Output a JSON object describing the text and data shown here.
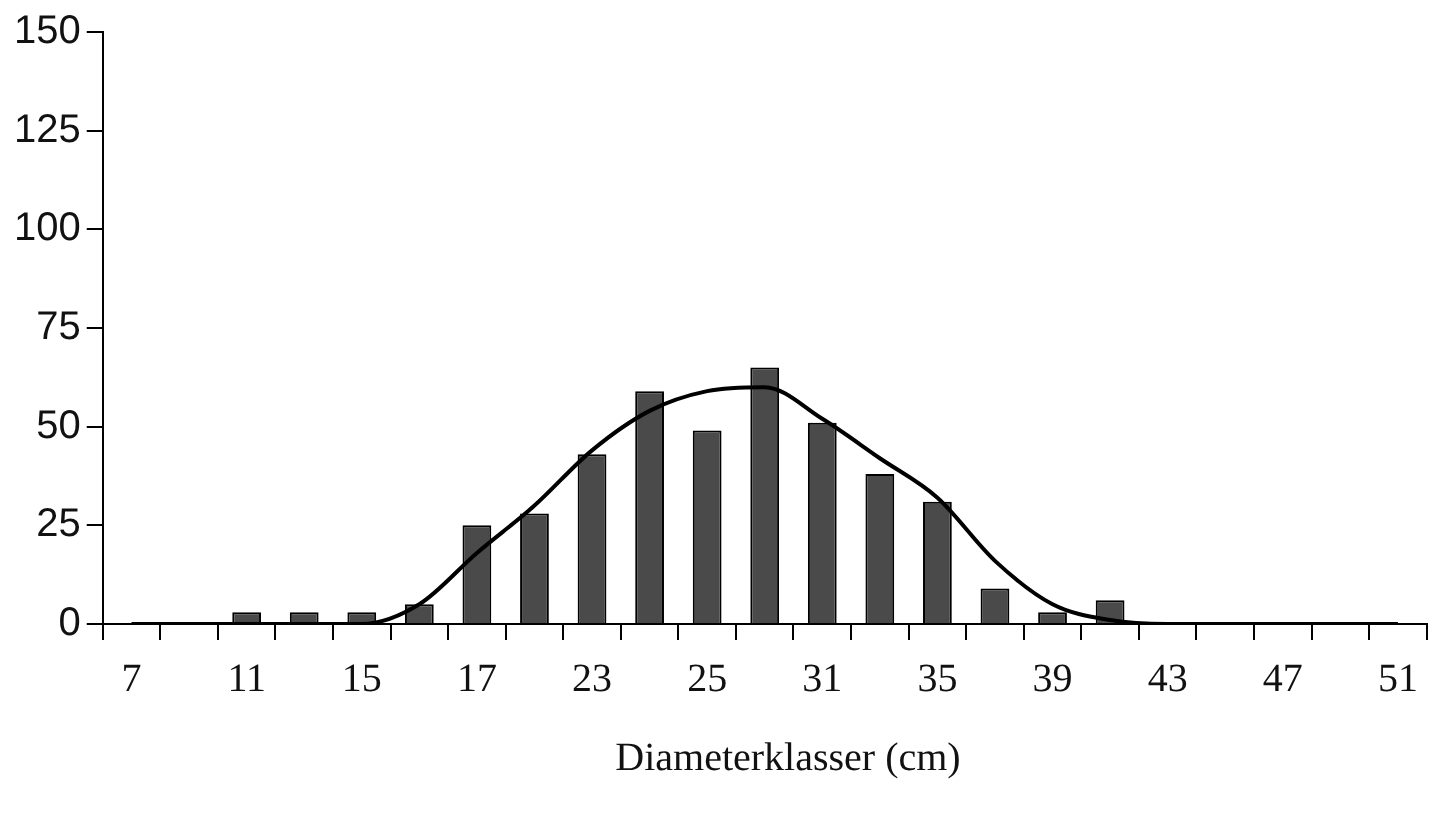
{
  "chart_data": {
    "type": "bar",
    "xlabel": "Diameterklasser (cm)",
    "categories": [
      "7",
      null,
      "11",
      null,
      "15",
      null,
      "17",
      null,
      "23",
      null,
      "25",
      null,
      "31",
      null,
      "35",
      null,
      "39",
      null,
      "43",
      null,
      "47",
      null,
      "51"
    ],
    "series": [
      {
        "color": "#4a4a4a",
        "values": [
          0,
          0,
          3,
          3,
          3,
          5,
          25,
          28,
          43,
          59,
          49,
          65,
          51,
          38,
          31,
          9,
          3,
          6,
          0,
          0,
          0,
          0,
          0
        ]
      },
      {
        "type": "line",
        "color": "#000000",
        "values": [
          0,
          0,
          0,
          0,
          0,
          5,
          18,
          30,
          44,
          54,
          59,
          60,
          52,
          42,
          32,
          16,
          5,
          1,
          0,
          0,
          0,
          0,
          0
        ]
      }
    ],
    "ylim": [
      0,
      150
    ],
    "yticks": [
      0,
      25,
      50,
      75,
      100,
      125,
      150
    ],
    "grid": false,
    "legend": false,
    "marker": "none",
    "line_style": "solid"
  }
}
